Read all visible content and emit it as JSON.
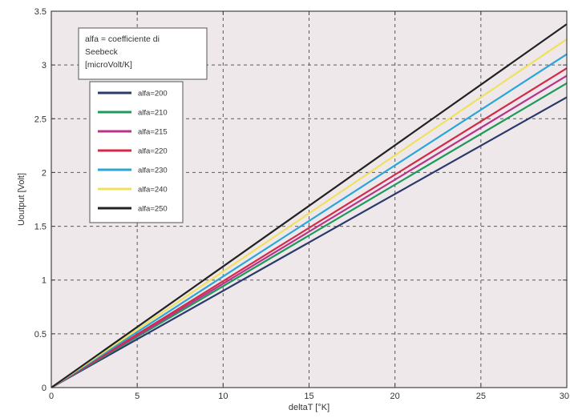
{
  "chart_data": {
    "type": "line",
    "xlabel": "deltaT [°K]",
    "ylabel": "Uoutput [Volt]",
    "xlim": [
      0,
      30
    ],
    "ylim": [
      0,
      3.5
    ],
    "xticks": [
      0,
      5,
      10,
      15,
      20,
      25,
      30
    ],
    "yticks": [
      0,
      0.5,
      1,
      1.5,
      2,
      2.5,
      3,
      3.5
    ],
    "xtick_labels": [
      "0",
      "5",
      "10",
      "15",
      "20",
      "25",
      "30"
    ],
    "ytick_labels": [
      "0",
      "0.5",
      "1",
      "1.5",
      "2",
      "2.5",
      "3",
      "3.5"
    ],
    "grid": true,
    "annotation": [
      "alfa = coefficiente di",
      "Seebeck",
      "[microVolt/K]"
    ],
    "legend_position": "top-left",
    "series": [
      {
        "name": "alfa=200",
        "color": "#2b3a6b",
        "x": [
          0,
          30
        ],
        "y": [
          0,
          2.7
        ]
      },
      {
        "name": "alfa=210",
        "color": "#1e9a5a",
        "x": [
          0,
          30
        ],
        "y": [
          0,
          2.83
        ]
      },
      {
        "name": "alfa=215",
        "color": "#b8338a",
        "x": [
          0,
          30
        ],
        "y": [
          0,
          2.9
        ]
      },
      {
        "name": "alfa=220",
        "color": "#d42a4a",
        "x": [
          0,
          30
        ],
        "y": [
          0,
          2.97
        ]
      },
      {
        "name": "alfa=230",
        "color": "#2aa6d8",
        "x": [
          0,
          30
        ],
        "y": [
          0,
          3.1
        ]
      },
      {
        "name": "alfa=240",
        "color": "#f0e060",
        "x": [
          0,
          30
        ],
        "y": [
          0,
          3.24
        ]
      },
      {
        "name": "alfa=250",
        "color": "#222222",
        "x": [
          0,
          30
        ],
        "y": [
          0,
          3.38
        ]
      }
    ]
  }
}
